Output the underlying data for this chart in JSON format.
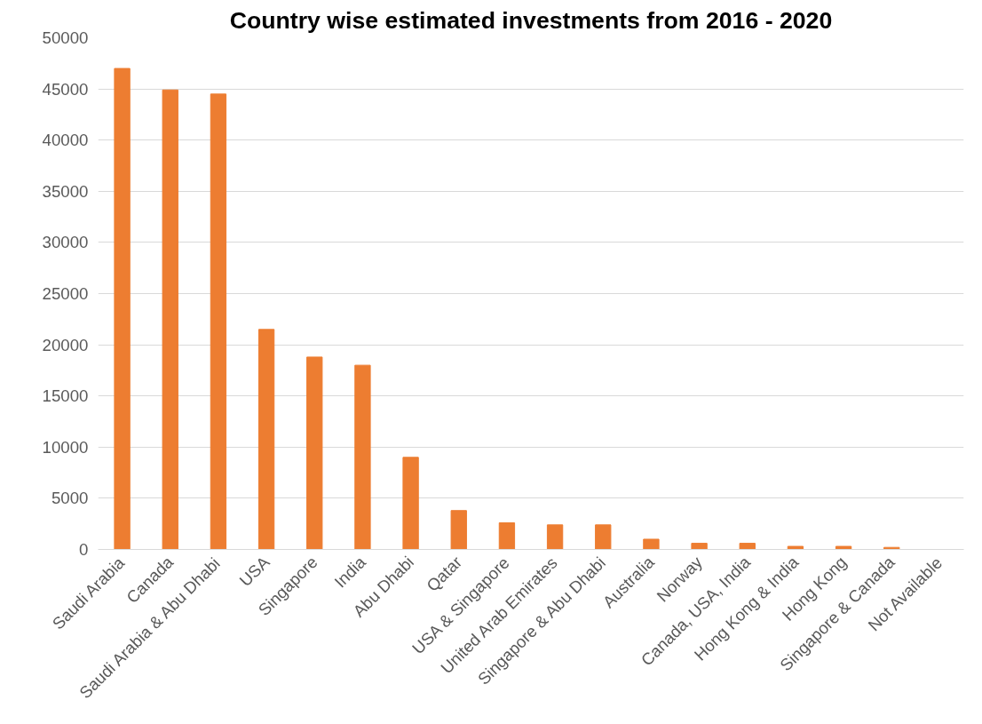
{
  "chart_data": {
    "type": "bar",
    "title": "Country wise estimated investments from 2016 - 2020",
    "categories": [
      "Saudi Arabia",
      "Canada",
      "Saudi Arabia & Abu Dhabi",
      "USA",
      "Singapore",
      "India",
      "Abu Dhabi",
      "Qatar",
      "USA & Singapore",
      "United Arab Emirates",
      "Singapore & Abu Dhabi",
      "Australia",
      "Norway",
      "Canada, USA, India",
      "Hong Kong & India",
      "Hong Kong",
      "Singapore & Canada",
      "Not Available"
    ],
    "values": [
      47000,
      44900,
      44500,
      21500,
      18800,
      18000,
      9000,
      3800,
      2600,
      2400,
      2400,
      1000,
      600,
      600,
      300,
      300,
      200,
      0
    ],
    "color": "#ed7d31",
    "ylim": [
      0,
      50000
    ],
    "yticks": [
      0,
      5000,
      10000,
      15000,
      20000,
      25000,
      30000,
      35000,
      40000,
      45000,
      50000
    ],
    "grid": "y"
  }
}
